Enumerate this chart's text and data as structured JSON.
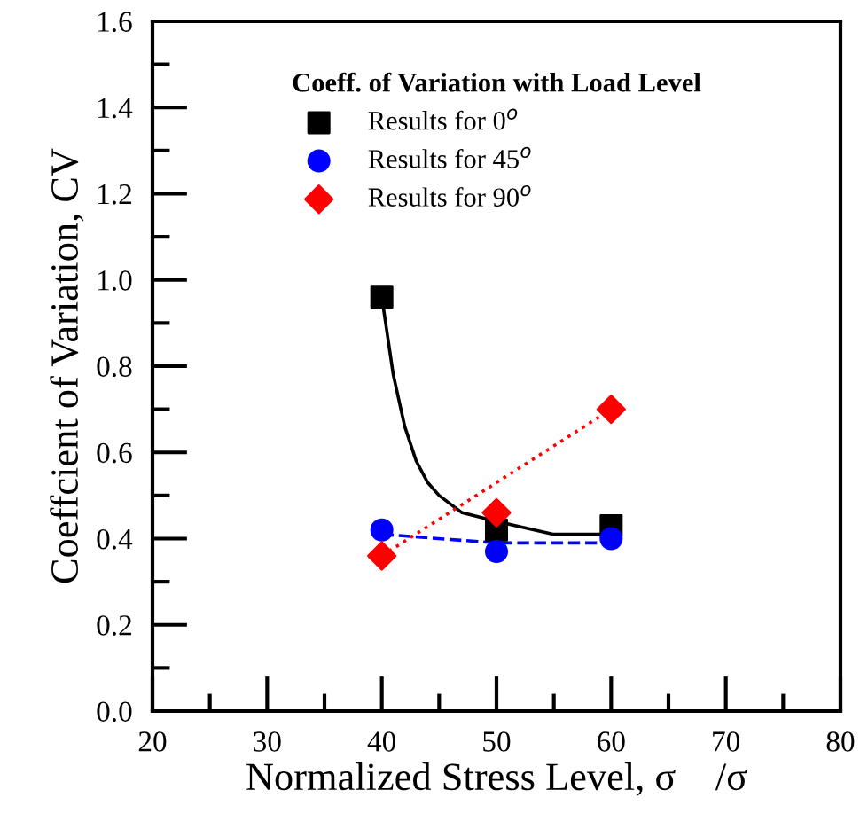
{
  "chart_data": {
    "type": "scatter",
    "xlabel": "Normalized Stress Level, σ    /σ",
    "ylabel": "Coeffcient of Variation, CV",
    "legend_title": "Coeff. of Variation with Load Level",
    "legend": "top",
    "grid": false,
    "xlim": [
      20,
      80
    ],
    "ylim": [
      0,
      1.6
    ],
    "xticks": [
      20,
      {
        "value": 25,
        "label": null
      },
      30,
      {
        "value": 35,
        "label": null
      },
      40,
      {
        "value": 45,
        "label": null
      },
      50,
      {
        "value": 55,
        "label": null
      },
      60,
      {
        "value": 65,
        "label": null
      },
      70,
      {
        "value": 75,
        "label": null
      },
      80
    ],
    "yticks": [
      {
        "value": 0,
        "label": "0.0"
      },
      {
        "value": 0.1,
        "label": null
      },
      0.2,
      {
        "value": 0.3,
        "label": null
      },
      0.4,
      {
        "value": 0.5,
        "label": null
      },
      0.6,
      {
        "value": 0.7,
        "label": null
      },
      0.8,
      {
        "value": 0.9,
        "label": null
      },
      {
        "value": 1,
        "label": "1.0"
      },
      {
        "value": 1.1,
        "label": null
      },
      1.2,
      {
        "value": 1.3,
        "label": null
      },
      1.4,
      {
        "value": 1.5,
        "label": null
      },
      1.6
    ],
    "series": [
      {
        "name": "Results for 0$^{o}$",
        "marker": "square",
        "color": "#000000",
        "x": [
          40,
          50,
          60
        ],
        "values": [
          0.96,
          0.42,
          0.43
        ]
      },
      {
        "name": "Results for 45$^{o}$",
        "marker": "circle",
        "color": "#0000ff",
        "x": [
          40,
          50,
          60
        ],
        "values": [
          0.42,
          0.37,
          0.4
        ]
      },
      {
        "name": "Results for 90$^{o}$",
        "marker": "diamond",
        "color": "#ff0000",
        "x": [
          40,
          50,
          60
        ],
        "values": [
          0.36,
          0.46,
          0.7
        ]
      },
      {
        "type": "line",
        "line_style": "solid",
        "color": "#000000",
        "x": [
          40,
          41,
          42,
          43,
          44,
          45,
          47,
          50,
          55,
          60
        ],
        "values": [
          0.96,
          0.78,
          0.66,
          0.58,
          0.53,
          0.5,
          0.46,
          0.44,
          0.41,
          0.41
        ]
      },
      {
        "type": "line",
        "line_style": "dashed",
        "color": "#0000ff",
        "x": [
          40,
          50,
          60
        ],
        "values": [
          0.41,
          0.39,
          0.39
        ]
      },
      {
        "type": "line",
        "line_style": "dotted",
        "color": "#ff0000",
        "x": [
          40,
          60
        ],
        "values": [
          0.36,
          0.7
        ]
      }
    ]
  }
}
